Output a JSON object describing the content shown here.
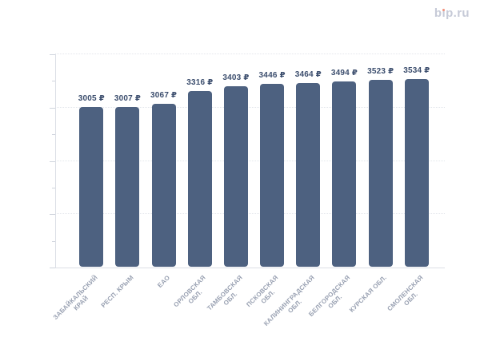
{
  "logo": {
    "text": "bip.ru",
    "color": "#c6cad7",
    "dot_color": "#f2907b"
  },
  "chart_data": {
    "type": "bar",
    "title": "",
    "xlabel": "",
    "ylabel": "",
    "categories": [
      "ЗАБАЙКАЛЬСКИЙ\nКРАЙ",
      "РЕСП. КРЫМ",
      "ЕАО",
      "ОРЛОВСКАЯ\nОБЛ.",
      "ТАМБОВСКАЯ\nОБЛ.",
      "ПСКОВСКАЯ\nОБЛ.",
      "КАЛИНИНГРАДСКАЯ\nОБЛ.",
      "БЕЛГОРОДСКАЯ\nОБЛ.",
      "КУРСКАЯ ОБЛ.",
      "СМОЛЕНСКАЯ\nОБЛ."
    ],
    "values": [
      3005,
      3007,
      3067,
      3316,
      3403,
      3446,
      3464,
      3494,
      3523,
      3534
    ],
    "value_labels": [
      "3005 ₽",
      "3007 ₽",
      "3067 ₽",
      "3316 ₽",
      "3403 ₽",
      "3446 ₽",
      "3464 ₽",
      "3494 ₽",
      "3523 ₽",
      "3534 ₽"
    ],
    "currency_suffix": "₽",
    "ylim": [
      0,
      4000
    ],
    "y_ticks": [
      "0",
      "1000",
      "2000",
      "3000",
      "4000"
    ],
    "minor_tick_step": 500,
    "grid": "dotted-horizontal",
    "legend": "none",
    "bar_color": "#4d6180",
    "value_label_color": "#3b4d6d",
    "y_label_color": "#a6adbc",
    "x_label_color": "#99a1b2",
    "grid_color": "#e2e5eb",
    "axis_line_color": "#dcdfe6",
    "tick_color": "#cfd4dd"
  }
}
